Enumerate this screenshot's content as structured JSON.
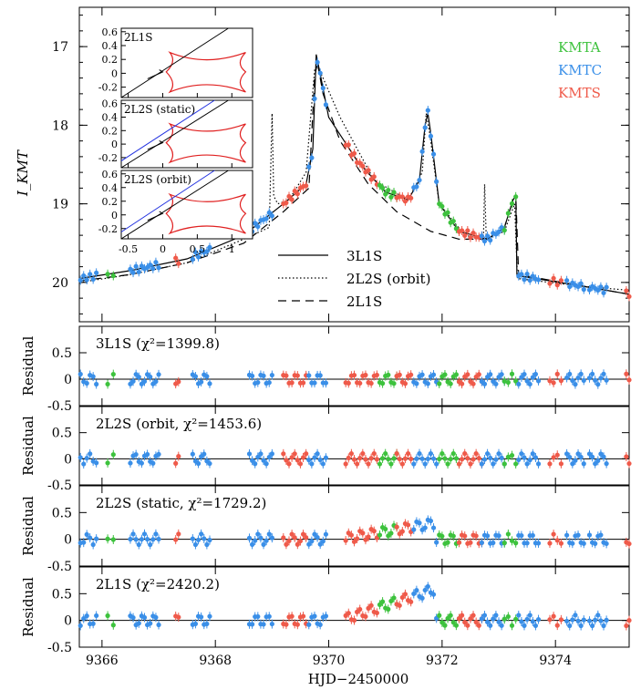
{
  "chart_data": [
    {
      "type": "line",
      "panel": "main",
      "ylabel": "I_KMT",
      "ylim": [
        20.5,
        16.5
      ],
      "xlim": [
        9365.6,
        9375.3
      ],
      "yticks": [
        17,
        18,
        19,
        20
      ],
      "telescopes": [
        {
          "name": "KMTA",
          "color": "#3dc23d"
        },
        {
          "name": "KMTC",
          "color": "#3a8fe8"
        },
        {
          "name": "KMTS",
          "color": "#ef5a4a"
        }
      ],
      "models": [
        {
          "name": "3L1S",
          "style": "solid"
        },
        {
          "name": "2L2S (orbit)",
          "style": "dotted"
        },
        {
          "name": "2L1S",
          "style": "dashed"
        }
      ],
      "model_3L1S": {
        "x": [
          9365.6,
          9366.5,
          9367.5,
          9368.5,
          9369.2,
          9369.6,
          9369.72,
          9369.78,
          9369.85,
          9370.0,
          9370.5,
          9371.0,
          9371.4,
          9371.6,
          9371.7,
          9371.75,
          9371.8,
          9371.95,
          9372.3,
          9372.8,
          9373.1,
          9373.25,
          9373.3,
          9373.32,
          9373.4,
          9374.5,
          9375.3
        ],
        "y": [
          19.95,
          19.85,
          19.7,
          19.4,
          19.0,
          18.75,
          18.3,
          17.1,
          17.35,
          17.9,
          18.45,
          18.85,
          18.95,
          18.7,
          18.0,
          17.85,
          18.1,
          19.0,
          19.35,
          19.45,
          19.3,
          18.95,
          18.9,
          19.9,
          19.92,
          20.05,
          20.15
        ]
      },
      "model_2L1S": {
        "x": [
          9365.6,
          9366.5,
          9367.5,
          9368.5,
          9369.2,
          9369.65,
          9369.75,
          9369.8,
          9369.9,
          9370.2,
          9370.7,
          9371.2,
          9371.8,
          9372.3,
          9372.8,
          9373.1,
          9373.25,
          9373.3,
          9373.35,
          9374.5,
          9375.3
        ],
        "y": [
          19.98,
          19.9,
          19.75,
          19.5,
          19.1,
          18.8,
          17.4,
          17.2,
          17.6,
          18.2,
          18.75,
          19.1,
          19.35,
          19.45,
          19.45,
          19.3,
          18.95,
          18.9,
          19.9,
          20.05,
          20.15
        ]
      },
      "model_2L2S_orbit": {
        "x": [
          9365.6,
          9366.5,
          9367.5,
          9368.5,
          9368.95,
          9369.0,
          9369.03,
          9369.1,
          9369.3,
          9369.6,
          9369.75,
          9369.8,
          9369.9,
          9370.2,
          9370.8,
          9371.4,
          9371.65,
          9371.72,
          9371.78,
          9371.95,
          9372.4,
          9372.73,
          9372.75,
          9372.78,
          9373.1,
          9373.28,
          9373.33,
          9374.5,
          9375.3
        ],
        "y": [
          20.0,
          19.9,
          19.75,
          19.45,
          19.3,
          17.85,
          18.9,
          19.0,
          18.95,
          18.6,
          17.3,
          17.25,
          17.4,
          17.9,
          18.7,
          18.95,
          18.6,
          17.85,
          18.1,
          19.0,
          19.4,
          19.45,
          18.75,
          19.45,
          19.35,
          19.0,
          19.95,
          20.05,
          20.1
        ]
      }
    },
    {
      "type": "scatter",
      "panel": "residual",
      "title": "3L1S (χ²=1399.8)",
      "ylabel": "Residual",
      "ylim": [
        -0.5,
        1.0
      ],
      "yticks": [
        -0.5,
        0,
        0.5
      ]
    },
    {
      "type": "scatter",
      "panel": "residual",
      "title": "2L2S (orbit, χ²=1453.6)",
      "ylabel": "Residual",
      "ylim": [
        -0.5,
        1.0
      ],
      "yticks": [
        -0.5,
        0,
        0.5
      ]
    },
    {
      "type": "scatter",
      "panel": "residual",
      "title": "2L2S (static, χ²=1729.2)",
      "ylabel": "Residual",
      "ylim": [
        -0.5,
        1.0
      ],
      "yticks": [
        -0.5,
        0,
        0.5
      ]
    },
    {
      "type": "scatter",
      "panel": "residual",
      "title": "2L1S (χ²=2420.2)",
      "ylabel": "Residual",
      "ylim": [
        -0.5,
        1.0
      ],
      "yticks": [
        -0.5,
        0,
        0.5
      ]
    }
  ],
  "xlabel": "HJD−2450000",
  "xticks": [
    9366,
    9368,
    9370,
    9372,
    9374
  ],
  "insets": [
    {
      "label": "2L1S",
      "yticks": [
        0.6,
        0.4,
        0.2,
        0,
        -0.2
      ],
      "ylim": [
        -0.35,
        0.65
      ],
      "xlim": [
        -0.6,
        1.3
      ]
    },
    {
      "label": "2L2S (static)",
      "yticks": [
        0.6,
        0.4,
        0.2,
        0,
        -0.2
      ],
      "ylim": [
        -0.35,
        0.65
      ],
      "xlim": [
        -0.6,
        1.3
      ]
    },
    {
      "label": "2L2S (orbit)",
      "yticks": [
        0.6,
        0.4,
        0.2,
        0,
        -0.2
      ],
      "ylim": [
        -0.35,
        0.65
      ],
      "xlim": [
        -0.6,
        1.3
      ]
    }
  ],
  "inset_xticks": [
    -0.5,
    0,
    0.5,
    1
  ]
}
